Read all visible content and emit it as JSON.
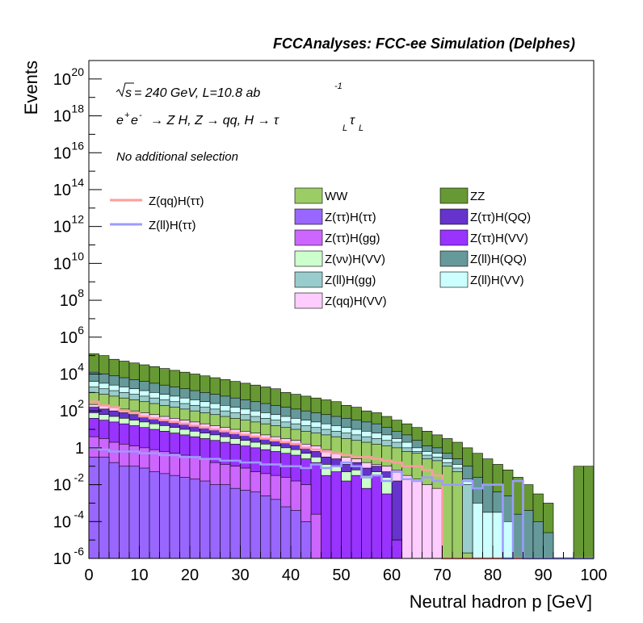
{
  "header": {
    "title": "FCCAnalyses: FCC-ee Simulation (Delphes)"
  },
  "annotations": {
    "energy": "= 240 GeV, L=10.8 ab",
    "energy_prefix": "s",
    "lumi_exp": "-1",
    "process_main": "e",
    "process_rest": "→ Z H, Z  → qq, H  → τ",
    "process_tail": "τ",
    "sub_L": "L",
    "sup_plus": "+",
    "sup_minus": "-",
    "minus_e": "e",
    "selection": "No additional selection"
  },
  "chart_data": {
    "type": "histogram",
    "title": "FCCAnalyses: FCC-ee Simulation (Delphes)",
    "xlabel": "Neutral hadron p [GeV]",
    "ylabel": "Events",
    "xlim": [
      0,
      100
    ],
    "ylim": [
      1e-06,
      1e+21
    ],
    "log_y": true,
    "bin_width": 2,
    "x_ticks": [
      "0",
      "10",
      "20",
      "30",
      "40",
      "50",
      "60",
      "70",
      "80",
      "90",
      "100"
    ],
    "y_ticks": [
      {
        "mant": "10",
        "exp": "20"
      },
      {
        "mant": "10",
        "exp": "18"
      },
      {
        "mant": "10",
        "exp": "16"
      },
      {
        "mant": "10",
        "exp": "14"
      },
      {
        "mant": "10",
        "exp": "12"
      },
      {
        "mant": "10",
        "exp": "10"
      },
      {
        "mant": "10",
        "exp": "8"
      },
      {
        "mant": "10",
        "exp": "6"
      },
      {
        "mant": "10",
        "exp": "4"
      },
      {
        "mant": "10",
        "exp": "2"
      },
      {
        "mant": "1",
        "exp": ""
      },
      {
        "mant": "10",
        "exp": "-2"
      },
      {
        "mant": "10",
        "exp": "-4"
      },
      {
        "mant": "10",
        "exp": "-6"
      }
    ],
    "legend_signal": [
      {
        "name": "Z(qq)H(ττ)",
        "color": "#ff9c9c"
      },
      {
        "name": "Z(ll)H(ττ)",
        "color": "#9c9cff"
      }
    ],
    "legend_background": [
      {
        "name": "WW",
        "color": "#9ccc66"
      },
      {
        "name": "ZZ",
        "color": "#669933"
      },
      {
        "name": "Z(ττ)H(ττ)",
        "color": "#9966ff"
      },
      {
        "name": "Z(ττ)H(QQ)",
        "color": "#6633cc"
      },
      {
        "name": "Z(ττ)H(gg)",
        "color": "#cc66ff"
      },
      {
        "name": "Z(ττ)H(VV)",
        "color": "#9933ff"
      },
      {
        "name": "Z(νν)H(VV)",
        "color": "#ccffcc"
      },
      {
        "name": "Z(ll)H(QQ)",
        "color": "#669999"
      },
      {
        "name": "Z(ll)H(gg)",
        "color": "#99cccc"
      },
      {
        "name": "Z(ll)H(VV)",
        "color": "#ccffff"
      },
      {
        "name": "Z(qq)H(VV)",
        "color": "#ffccff"
      }
    ],
    "stack_order_bottom_to_top": [
      "Z(ττ)H(ττ)",
      "Z(ττ)H(gg)",
      "Z(ττ)H(VV)",
      "Z(νν)H(VV)",
      "Z(ττ)H(QQ)",
      "Z(qq)H(VV)",
      "WW",
      "Z(ll)H(gg)",
      "Z(ll)H(VV)",
      "Z(ll)H(QQ)",
      "ZZ"
    ],
    "stack_colors": [
      "#9966ff",
      "#cc66ff",
      "#9933ff",
      "#ccffcc",
      "#6633cc",
      "#ffccff",
      "#9ccc66",
      "#99cccc",
      "#ccffff",
      "#669999",
      "#669933"
    ],
    "stack_cumulative_log10": {
      "Z(ττ)H(ττ)": [
        -0.5,
        -0.5,
        -0.8,
        -1.0,
        -1.0,
        -1.1,
        -1.3,
        -1.4,
        -1.5,
        -1.6,
        -1.7,
        -1.8,
        -2.0,
        -2.0,
        -2.2,
        -2.3,
        -2.4,
        -2.6,
        -2.8,
        -3.2,
        -3.4,
        -4.0,
        -7,
        -7,
        -7,
        -7,
        -7,
        -7,
        -7,
        -7,
        -7,
        -7,
        -7,
        -7,
        -7,
        -7,
        -7,
        -7,
        -7,
        -7,
        -7,
        -7,
        -7,
        -7,
        -7,
        -7,
        -7,
        -7,
        -7,
        -7
      ],
      "Z(ττ)H(gg)": [
        0.6,
        0.5,
        0.3,
        0.2,
        0.1,
        0.0,
        -0.1,
        -0.2,
        -0.3,
        -0.4,
        -0.5,
        -0.6,
        -0.8,
        -0.9,
        -1.0,
        -1.1,
        -1.3,
        -1.4,
        -1.5,
        -1.6,
        -1.8,
        -2.0,
        -3.6,
        -7,
        -7,
        -7,
        -7,
        -7,
        -7,
        -7,
        -7,
        -7,
        -7,
        -7,
        -7,
        -7,
        -7,
        -7,
        -7,
        -7,
        -7,
        -7,
        -7,
        -7,
        -7,
        -7,
        -7,
        -7,
        -7,
        -7
      ],
      "Z(ττ)H(VV)": [
        1.6,
        1.5,
        1.4,
        1.3,
        1.2,
        1.1,
        1.0,
        0.9,
        0.8,
        0.7,
        0.6,
        0.5,
        0.4,
        0.3,
        0.2,
        0.1,
        0.0,
        -0.1,
        -0.2,
        -0.3,
        -0.4,
        -0.6,
        -0.8,
        -1.5,
        -1.3,
        -1.8,
        -1.5,
        -2.2,
        -1.5,
        -2.5,
        -5.0,
        -7,
        -7,
        -7,
        -7,
        -7,
        -7,
        -7,
        -7,
        -7,
        -7,
        -7,
        -7,
        -7,
        -7,
        -7,
        -7,
        -7,
        -7,
        -7
      ],
      "Z(νν)H(VV)": [
        1.9,
        1.8,
        1.7,
        1.6,
        1.5,
        1.4,
        1.3,
        1.2,
        1.1,
        1.0,
        0.9,
        0.8,
        0.7,
        0.6,
        0.5,
        0.4,
        0.3,
        0.2,
        0.1,
        0.0,
        -0.1,
        -0.3,
        -0.5,
        -0.9,
        -1.0,
        -1.3,
        -1.2,
        -1.5,
        -1.3,
        -1.6,
        -5.0,
        -7,
        -7,
        -7,
        -7,
        -7,
        -7,
        -7,
        -7,
        -7,
        -7,
        -7,
        -7,
        -7,
        -7,
        -7,
        -7,
        -7,
        -7,
        -7
      ],
      "Z(ττ)H(QQ)": [
        2.2,
        2.1,
        2.0,
        1.9,
        1.8,
        1.7,
        1.6,
        1.5,
        1.4,
        1.3,
        1.2,
        1.1,
        1.0,
        0.9,
        0.8,
        0.7,
        0.6,
        0.5,
        0.4,
        0.3,
        0.2,
        0.0,
        -0.2,
        -0.5,
        -0.6,
        -0.9,
        -0.8,
        -1.1,
        -1.0,
        -1.3,
        -1.8,
        -7,
        -7,
        -7,
        -7,
        -7,
        -7,
        -7,
        -7,
        -7,
        -7,
        -7,
        -7,
        -7,
        -7,
        -7,
        -7,
        -7,
        -7,
        -7
      ],
      "Z(qq)H(VV)": [
        2.35,
        2.3,
        2.2,
        2.1,
        2.0,
        1.9,
        1.8,
        1.7,
        1.6,
        1.5,
        1.4,
        1.3,
        1.2,
        1.1,
        1.0,
        0.9,
        0.8,
        0.7,
        0.6,
        0.5,
        0.4,
        0.2,
        0.1,
        -0.1,
        -0.3,
        -0.5,
        -0.6,
        -0.8,
        -0.9,
        -1.0,
        -1.2,
        -1.5,
        -1.7,
        -2.0,
        -2.2,
        -6.0,
        -7,
        -7,
        -7,
        -7,
        -7,
        -7,
        -7,
        -7,
        -7,
        -7,
        -7,
        -7,
        -7,
        -7
      ],
      "WW": [
        3.0,
        2.9,
        2.8,
        2.7,
        2.6,
        2.5,
        2.4,
        2.3,
        2.2,
        2.1,
        2.0,
        1.9,
        1.8,
        1.7,
        1.6,
        1.5,
        1.4,
        1.3,
        1.2,
        1.1,
        1.0,
        0.9,
        0.8,
        0.7,
        0.6,
        0.5,
        0.4,
        0.3,
        0.2,
        0.1,
        0.0,
        -0.2,
        -0.3,
        -0.6,
        -0.7,
        -1.0,
        -1.3,
        -5.7,
        -7,
        -7,
        -7,
        -7,
        -7,
        -7,
        -7,
        -7,
        -7,
        -7,
        -7,
        -7
      ],
      "Z(ll)H(gg)": [
        3.3,
        3.2,
        3.1,
        3.0,
        2.9,
        2.8,
        2.7,
        2.6,
        2.5,
        2.4,
        2.3,
        2.2,
        2.1,
        2.0,
        1.9,
        1.8,
        1.7,
        1.6,
        1.5,
        1.4,
        1.3,
        1.2,
        1.1,
        1.0,
        0.9,
        0.8,
        0.7,
        0.6,
        0.5,
        0.4,
        0.3,
        0.0,
        -0.2,
        -0.4,
        -0.5,
        -0.8,
        -1.1,
        -2.0,
        -7,
        -7,
        -7,
        -7,
        -7,
        -7,
        -7,
        -7,
        -7,
        -7,
        -7,
        -7
      ],
      "Z(ll)H(VV)": [
        3.6,
        3.5,
        3.4,
        3.3,
        3.2,
        3.1,
        3.0,
        2.9,
        2.8,
        2.7,
        2.6,
        2.5,
        2.4,
        2.3,
        2.2,
        2.1,
        2.0,
        1.9,
        1.8,
        1.7,
        1.6,
        1.5,
        1.4,
        1.3,
        1.2,
        1.1,
        1.0,
        0.9,
        0.8,
        0.7,
        0.5,
        0.3,
        0.0,
        -0.2,
        -0.3,
        -0.6,
        -0.9,
        -1.7,
        -3.0,
        -3.5,
        -3.5,
        -4.0,
        -7,
        -7,
        -7,
        -7,
        -7,
        -7,
        -7,
        -7
      ],
      "Z(ll)H(QQ)": [
        4.1,
        4.0,
        3.9,
        3.8,
        3.7,
        3.6,
        3.5,
        3.4,
        3.3,
        3.2,
        3.1,
        3.0,
        2.9,
        2.8,
        2.7,
        2.6,
        2.5,
        2.4,
        2.3,
        2.2,
        2.1,
        2.0,
        1.9,
        1.8,
        1.7,
        1.6,
        1.5,
        1.4,
        1.3,
        1.1,
        0.9,
        0.7,
        0.4,
        0.1,
        0.0,
        -0.3,
        -0.6,
        -1.0,
        -1.6,
        -2.0,
        -2.4,
        -2.6,
        -3.6,
        -3.4,
        -4.0,
        -4.6,
        -7,
        -7,
        -7,
        -7
      ],
      "ZZ": [
        5.1,
        5.0,
        4.8,
        4.7,
        4.6,
        4.5,
        4.4,
        4.3,
        4.2,
        4.1,
        4.0,
        3.9,
        3.8,
        3.7,
        3.6,
        3.5,
        3.4,
        3.3,
        3.2,
        3.0,
        2.9,
        2.8,
        2.7,
        2.6,
        2.5,
        2.3,
        2.2,
        2.0,
        1.9,
        1.7,
        1.5,
        1.3,
        1.1,
        0.9,
        0.7,
        0.5,
        0.3,
        0.0,
        -0.3,
        -0.6,
        -0.9,
        -1.2,
        -1.6,
        -2.0,
        -2.5,
        -3.0,
        -7,
        -7,
        -1.0,
        -1.0
      ]
    },
    "signal_log10": {
      "Z(qq)H(ττ)": [
        2.5,
        2.3,
        2.2,
        2.0,
        1.9,
        1.7,
        1.6,
        1.5,
        1.4,
        1.3,
        1.2,
        1.1,
        1.0,
        0.9,
        0.8,
        0.7,
        0.6,
        0.5,
        0.4,
        0.3,
        0.2,
        0.0,
        -0.1,
        -0.2,
        -0.3,
        -0.4,
        -0.5,
        -0.5,
        -0.6,
        -0.7,
        -0.8,
        -1.0,
        -1.0,
        -1.2,
        -1.5,
        -7,
        -7,
        -7,
        -7,
        -7,
        -7,
        -7,
        -7,
        -7,
        -7,
        -7,
        -7,
        -7,
        -7,
        -7
      ],
      "Z(ll)H(ττ)": [
        0.0,
        -0.1,
        -0.2,
        -0.2,
        -0.2,
        -0.3,
        -0.3,
        -0.4,
        -0.4,
        -0.5,
        -0.5,
        -0.6,
        -0.6,
        -0.7,
        -0.7,
        -0.8,
        -0.8,
        -0.9,
        -0.9,
        -1.0,
        -1.0,
        -1.1,
        -0.9,
        -1.1,
        -1.0,
        -0.8,
        -1.0,
        -1.6,
        -1.5,
        -1.8,
        -1.3,
        -1.7,
        -1.8,
        -1.6,
        -1.8,
        -2.0,
        -2.0,
        -1.8,
        -2.2,
        -2.0,
        -2.0,
        -7,
        -1.8,
        -7,
        -7,
        -7,
        -7,
        -7,
        -7,
        -7
      ]
    }
  }
}
